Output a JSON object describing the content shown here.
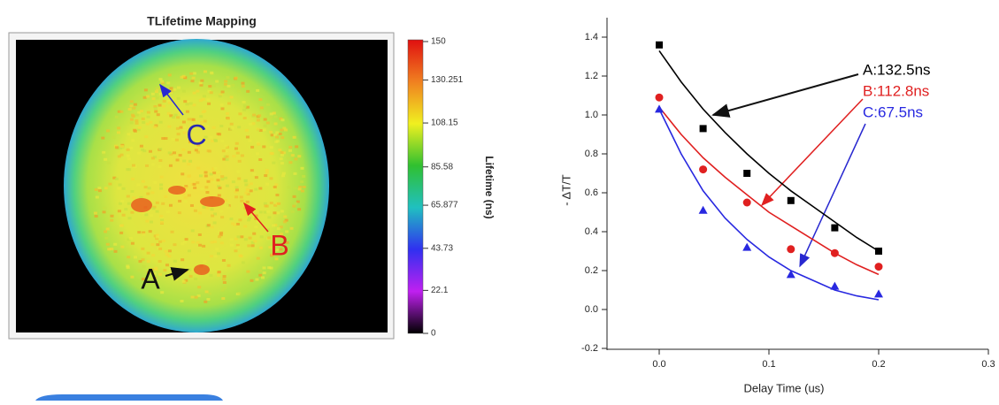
{
  "chart_data": [
    {
      "type": "heatmap",
      "title": "TLifetime Mapping",
      "colorbar_label": "Lifetime (ns)",
      "zlim": [
        0,
        150
      ],
      "zticks": [
        0,
        22.1,
        43.73,
        65.877,
        85.58,
        108.15,
        130.251,
        150
      ],
      "colormap": [
        "#000000",
        "#c020f0",
        "#3030f0",
        "#20c0c0",
        "#30c030",
        "#f0f020",
        "#f08020",
        "#e01010"
      ],
      "annotations": [
        {
          "text": "A",
          "color": "#111111"
        },
        {
          "text": "B",
          "color": "#e02020"
        },
        {
          "text": "C",
          "color": "#2828b0"
        }
      ]
    },
    {
      "type": "scatter",
      "xlabel": "Delay Time (us)",
      "ylabel": "- ΔT/T",
      "x": [
        0,
        0.04,
        0.08,
        0.12,
        0.16,
        0.2
      ],
      "fit_x": [
        0,
        0.02,
        0.04,
        0.06,
        0.08,
        0.1,
        0.12,
        0.14,
        0.16,
        0.18,
        0.2
      ],
      "series": [
        {
          "name": "A:132.5ns",
          "color": "#000000",
          "marker": "square",
          "values": [
            1.36,
            0.93,
            0.7,
            0.56,
            0.42,
            0.3
          ],
          "fit_values": [
            1.33,
            1.17,
            1.03,
            0.91,
            0.8,
            0.7,
            0.61,
            0.53,
            0.45,
            0.37,
            0.3
          ]
        },
        {
          "name": "B:112.8ns",
          "color": "#e02020",
          "marker": "circle",
          "values": [
            1.09,
            0.72,
            0.55,
            0.31,
            0.29,
            0.22
          ],
          "fit_values": [
            1.04,
            0.9,
            0.78,
            0.68,
            0.59,
            0.5,
            0.43,
            0.36,
            0.29,
            0.23,
            0.18
          ]
        },
        {
          "name": "C:67.5ns",
          "color": "#2828e0",
          "marker": "triangle",
          "values": [
            1.03,
            0.51,
            0.32,
            0.18,
            0.12,
            0.08
          ],
          "fit_values": [
            1.03,
            0.8,
            0.61,
            0.47,
            0.36,
            0.27,
            0.2,
            0.15,
            0.1,
            0.07,
            0.05
          ]
        }
      ],
      "xlim": [
        -0.05,
        0.3
      ],
      "xticks": [
        {
          "value": 0,
          "label": "0.0"
        },
        0.1,
        0.2,
        0.3
      ],
      "ylim": [
        -0.2,
        1.5
      ],
      "yticks": [
        -0.2,
        {
          "value": 0,
          "label": "0.0"
        },
        0.2,
        0.4,
        0.6,
        0.8,
        {
          "value": 1,
          "label": "1.0"
        },
        1.2,
        1.4
      ]
    }
  ]
}
